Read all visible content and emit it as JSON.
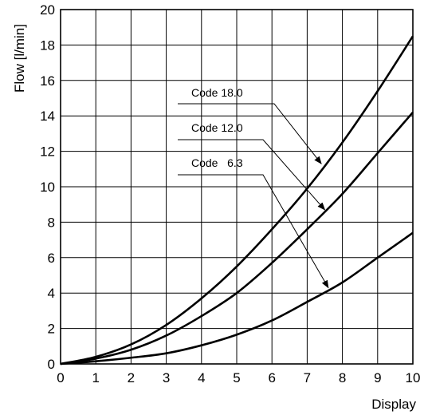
{
  "chart_data": {
    "type": "line",
    "title": "",
    "xlabel": "Display",
    "ylabel": "Flow [l/min]",
    "xlim": [
      0,
      10
    ],
    "ylim": [
      0,
      20
    ],
    "xticks": [
      0,
      1,
      2,
      3,
      4,
      5,
      6,
      7,
      8,
      9,
      10
    ],
    "yticks": [
      0,
      2,
      4,
      6,
      8,
      10,
      12,
      14,
      16,
      18,
      20
    ],
    "grid": true,
    "series": [
      {
        "name": "Code 18.0",
        "x": [
          0,
          1,
          2,
          3,
          4,
          5,
          6,
          7,
          8,
          9,
          10
        ],
        "y": [
          0,
          0.4,
          1.1,
          2.2,
          3.7,
          5.5,
          7.6,
          9.9,
          12.5,
          15.4,
          18.5
        ]
      },
      {
        "name": "Code 12.0",
        "x": [
          0,
          1,
          2,
          3,
          4,
          5,
          6,
          7,
          8,
          9,
          10
        ],
        "y": [
          0,
          0.3,
          0.8,
          1.6,
          2.7,
          4.0,
          5.7,
          7.6,
          9.6,
          11.9,
          14.2
        ]
      },
      {
        "name": "Code   6.3",
        "x": [
          0,
          1,
          2,
          3,
          4,
          5,
          6,
          7,
          8,
          9,
          10
        ],
        "y": [
          0,
          0.15,
          0.35,
          0.6,
          1.05,
          1.65,
          2.45,
          3.5,
          4.6,
          6.0,
          7.4
        ]
      }
    ],
    "annotations": [
      {
        "text": "Code 18.0",
        "series": "Code 18.0",
        "points_to": [
          7.4,
          11.3
        ]
      },
      {
        "text": "Code 12.0",
        "series": "Code 12.0",
        "points_to": [
          7.5,
          8.7
        ]
      },
      {
        "text": "Code   6.3",
        "series": "Code   6.3",
        "points_to": [
          7.6,
          4.3
        ]
      }
    ]
  }
}
